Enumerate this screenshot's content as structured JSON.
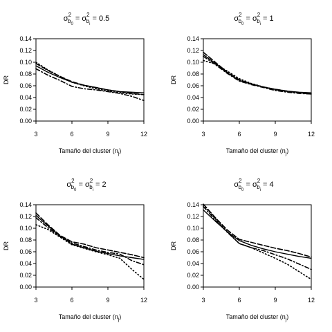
{
  "chart_data": [
    {
      "type": "line",
      "title": {
        "sigma": "σ",
        "sup": "2",
        "sub0": "b",
        "sub0i": "0",
        "sub1": "b",
        "sub1i": "i",
        "eq": "=",
        "value": "= 0.5"
      },
      "xlabel": "Tamaño del cluster (n",
      "xlabel_sub": "j",
      "xlabel_end": ")",
      "ylabel": "DR",
      "xticks": [
        "3",
        "6",
        "9",
        "12"
      ],
      "yticks": [
        "0.00",
        "0.02",
        "0.04",
        "0.06",
        "0.08",
        "0.10",
        "0.12",
        "0.14"
      ],
      "xlim": [
        3,
        12
      ],
      "ylim": [
        0,
        0.14
      ],
      "series": [
        {
          "style": "solid",
          "x": [
            3,
            4,
            5,
            6,
            7,
            8,
            9,
            10,
            11,
            12
          ],
          "y": [
            0.094,
            0.083,
            0.074,
            0.066,
            0.061,
            0.057,
            0.053,
            0.05,
            0.049,
            0.048
          ]
        },
        {
          "style": "dashed",
          "x": [
            3,
            4,
            5,
            6,
            7,
            8,
            9,
            10,
            11,
            12
          ],
          "y": [
            0.098,
            0.086,
            0.076,
            0.067,
            0.061,
            0.057,
            0.053,
            0.05,
            0.047,
            0.045
          ]
        },
        {
          "style": "dotdash",
          "x": [
            3,
            4,
            5,
            6,
            7,
            8,
            9,
            10,
            11,
            12
          ],
          "y": [
            0.089,
            0.078,
            0.069,
            0.059,
            0.055,
            0.053,
            0.05,
            0.047,
            0.042,
            0.035
          ]
        },
        {
          "style": "dotted",
          "x": [
            3,
            4,
            5,
            6,
            7,
            8,
            9,
            10,
            11,
            12
          ],
          "y": [
            0.1,
            0.087,
            0.076,
            0.066,
            0.06,
            0.055,
            0.051,
            0.048,
            0.046,
            0.045
          ]
        }
      ]
    },
    {
      "type": "line",
      "title": {
        "sigma": "σ",
        "sup": "2",
        "sub0": "b",
        "sub0i": "0",
        "sub1": "b",
        "sub1i": "i",
        "eq": "=",
        "value": "= 1"
      },
      "xlabel": "Tamaño del cluster (n",
      "xlabel_sub": "j",
      "xlabel_end": ")",
      "ylabel": "DR",
      "xticks": [
        "3",
        "6",
        "9",
        "12"
      ],
      "yticks": [
        "0.00",
        "0.02",
        "0.04",
        "0.06",
        "0.08",
        "0.10",
        "0.12",
        "0.14"
      ],
      "xlim": [
        3,
        12
      ],
      "ylim": [
        0,
        0.14
      ],
      "series": [
        {
          "style": "solid",
          "x": [
            3,
            4,
            5,
            6,
            7,
            8,
            9,
            10,
            11,
            12
          ],
          "y": [
            0.113,
            0.098,
            0.082,
            0.069,
            0.063,
            0.058,
            0.054,
            0.051,
            0.049,
            0.048
          ]
        },
        {
          "style": "dashed",
          "x": [
            3,
            4,
            5,
            6,
            7,
            8,
            9,
            10,
            11,
            12
          ],
          "y": [
            0.117,
            0.1,
            0.083,
            0.07,
            0.063,
            0.058,
            0.054,
            0.051,
            0.048,
            0.046
          ]
        },
        {
          "style": "dotdash",
          "x": [
            3,
            4,
            5,
            6,
            7,
            8,
            9,
            10,
            11,
            12
          ],
          "y": [
            0.11,
            0.096,
            0.081,
            0.068,
            0.062,
            0.057,
            0.052,
            0.049,
            0.047,
            0.046
          ]
        },
        {
          "style": "dotted",
          "x": [
            3,
            4,
            5,
            6,
            7,
            8,
            9,
            10,
            11,
            12
          ],
          "y": [
            0.103,
            0.097,
            0.085,
            0.072,
            0.064,
            0.058,
            0.053,
            0.05,
            0.048,
            0.047
          ]
        }
      ]
    },
    {
      "type": "line",
      "title": {
        "sigma": "σ",
        "sup": "2",
        "sub0": "b",
        "sub0i": "0",
        "sub1": "b",
        "sub1i": "i",
        "eq": "=",
        "value": "= 2"
      },
      "xlabel": "Tamaño del cluster (n",
      "xlabel_sub": "j",
      "xlabel_end": ")",
      "ylabel": "DR",
      "xticks": [
        "3",
        "6",
        "9",
        "12"
      ],
      "yticks": [
        "0.00",
        "0.02",
        "0.04",
        "0.06",
        "0.08",
        "0.10",
        "0.12",
        "0.14"
      ],
      "xlim": [
        3,
        12
      ],
      "ylim": [
        0,
        0.14
      ],
      "series": [
        {
          "style": "solid",
          "x": [
            3,
            4,
            5,
            6,
            7,
            8,
            9,
            10,
            11,
            12
          ],
          "y": [
            0.122,
            0.104,
            0.087,
            0.073,
            0.067,
            0.061,
            0.057,
            0.053,
            0.05,
            0.047
          ]
        },
        {
          "style": "dashed",
          "x": [
            3,
            4,
            5,
            6,
            7,
            8,
            9,
            10,
            11,
            12
          ],
          "y": [
            0.126,
            0.106,
            0.088,
            0.077,
            0.073,
            0.067,
            0.063,
            0.059,
            0.055,
            0.05
          ]
        },
        {
          "style": "dotdash",
          "x": [
            3,
            4,
            5,
            6,
            7,
            8,
            9,
            10,
            11,
            12
          ],
          "y": [
            0.118,
            0.101,
            0.086,
            0.075,
            0.069,
            0.063,
            0.059,
            0.056,
            0.045,
            0.038
          ]
        },
        {
          "style": "dotted",
          "x": [
            3,
            4,
            5,
            6,
            7,
            8,
            9,
            10,
            11,
            12
          ],
          "y": [
            0.106,
            0.098,
            0.085,
            0.072,
            0.066,
            0.06,
            0.055,
            0.049,
            0.03,
            0.013
          ]
        }
      ]
    },
    {
      "type": "line",
      "title": {
        "sigma": "σ",
        "sup": "2",
        "sub0": "b",
        "sub0i": "0",
        "sub1": "b",
        "sub1i": "i",
        "eq": "=",
        "value": "= 4"
      },
      "xlabel": "Tamaño del cluster (n",
      "xlabel_sub": "j",
      "xlabel_end": ")",
      "ylabel": "DR",
      "xticks": [
        "3",
        "6",
        "9",
        "12"
      ],
      "yticks": [
        "0.00",
        "0.02",
        "0.04",
        "0.06",
        "0.08",
        "0.10",
        "0.12",
        "0.14"
      ],
      "xlim": [
        3,
        12
      ],
      "ylim": [
        0,
        0.14
      ],
      "series": [
        {
          "style": "solid",
          "x": [
            3,
            4,
            5,
            6,
            7,
            8,
            9,
            10,
            11,
            12
          ],
          "y": [
            0.131,
            0.112,
            0.094,
            0.079,
            0.071,
            0.065,
            0.06,
            0.056,
            0.052,
            0.049
          ]
        },
        {
          "style": "dashed",
          "x": [
            3,
            4,
            5,
            6,
            7,
            8,
            9,
            10,
            11,
            12
          ],
          "y": [
            0.141,
            0.118,
            0.097,
            0.081,
            0.076,
            0.071,
            0.066,
            0.062,
            0.057,
            0.051
          ]
        },
        {
          "style": "dotdash",
          "x": [
            3,
            4,
            5,
            6,
            7,
            8,
            9,
            10,
            11,
            12
          ],
          "y": [
            0.137,
            0.114,
            0.093,
            0.074,
            0.067,
            0.062,
            0.055,
            0.048,
            0.039,
            0.03
          ]
        },
        {
          "style": "dotted",
          "x": [
            3,
            4,
            5,
            6,
            7,
            8,
            9,
            10,
            11,
            12
          ],
          "y": [
            0.14,
            0.116,
            0.094,
            0.074,
            0.067,
            0.058,
            0.049,
            0.039,
            0.026,
            0.013
          ]
        }
      ]
    }
  ]
}
